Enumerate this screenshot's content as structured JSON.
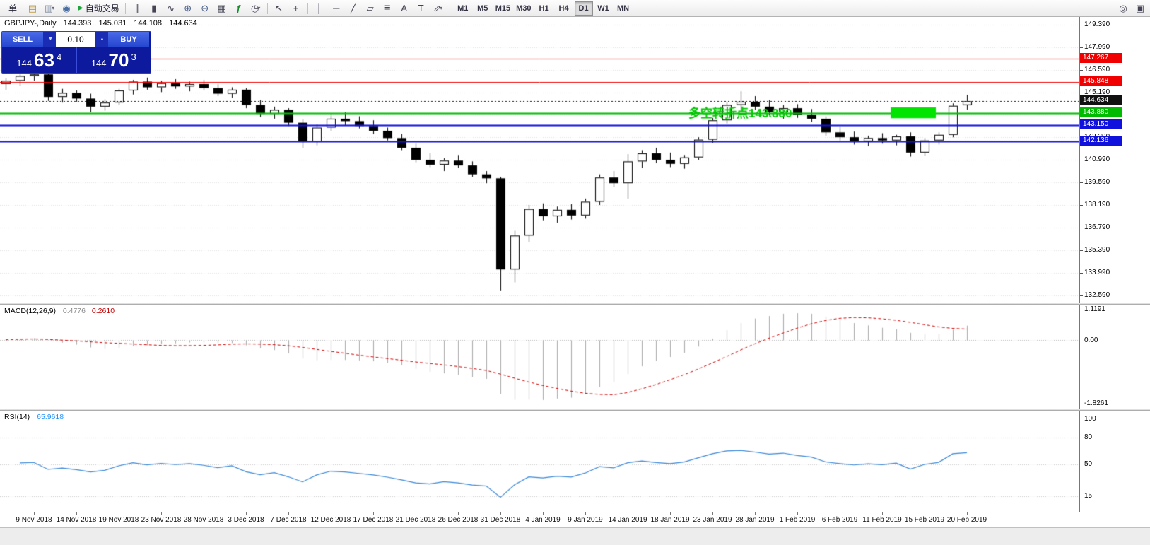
{
  "toolbar": {
    "new_order_label": "单",
    "autotrading_label": "自动交易",
    "autotrading_icon": "▶",
    "caret": "▾",
    "icons": [
      {
        "name": "new-chart",
        "glyph": "▤"
      },
      {
        "name": "profiles",
        "glyph": "▥"
      },
      {
        "name": "market-watch",
        "glyph": "◉"
      },
      {
        "name": "bars-chart",
        "glyph": "∥"
      },
      {
        "name": "candles-chart",
        "glyph": "▮"
      },
      {
        "name": "line-chart",
        "glyph": "∿"
      },
      {
        "name": "zoom-in",
        "glyph": "⊕"
      },
      {
        "name": "zoom-out",
        "glyph": "⊖"
      },
      {
        "name": "tile-windows",
        "glyph": "▦"
      },
      {
        "name": "indicators",
        "glyph": "ƒ"
      },
      {
        "name": "periods",
        "glyph": "◷"
      },
      {
        "name": "cursor",
        "glyph": "↖"
      },
      {
        "name": "crosshair",
        "glyph": "+"
      },
      {
        "name": "vertical-line",
        "glyph": "│"
      },
      {
        "name": "horizontal-line",
        "glyph": "─"
      },
      {
        "name": "trendline",
        "glyph": "╱"
      },
      {
        "name": "channel",
        "glyph": "▱"
      },
      {
        "name": "fibonacci",
        "glyph": "≣"
      },
      {
        "name": "text",
        "glyph": "A"
      },
      {
        "name": "text-label",
        "glyph": "T"
      },
      {
        "name": "arrows",
        "glyph": "⇗"
      },
      {
        "name": "search",
        "glyph": "◎"
      },
      {
        "name": "new-window",
        "glyph": "▣"
      }
    ],
    "timeframes": [
      "M1",
      "M5",
      "M15",
      "M30",
      "H1",
      "H4",
      "D1",
      "W1",
      "MN"
    ],
    "active_timeframe": "D1"
  },
  "chart": {
    "title_symbol": "GBPJPY-,Daily",
    "open": "144.393",
    "high": "145.031",
    "low": "144.108",
    "close": "144.634",
    "one_click": {
      "sell_label": "SELL",
      "buy_label": "BUY",
      "lot": "0.10",
      "spin_down": "▼",
      "spin_up": "▲",
      "sell_price_small": "144",
      "sell_price_big": "63",
      "sell_price_sup": "4",
      "buy_price_small": "144",
      "buy_price_big": "70",
      "buy_price_sup": "3"
    },
    "macd_label": "MACD(12,26,9)",
    "macd_value_main": "0.4776",
    "macd_value_signal": "0.2610",
    "rsi_label": "RSI(14)",
    "rsi_value": "65.9618"
  },
  "chart_data": {
    "type": "candlestick",
    "symbol": "GBPJPY-",
    "timeframe": "Daily",
    "current_bar": {
      "open": 144.393,
      "high": 145.031,
      "low": 144.108,
      "close": 144.634
    },
    "y_axis": {
      "max": 149.86,
      "min": 132.15,
      "tick_labels": [
        "149.390",
        "147.990",
        "146.590",
        "145.190",
        "143.790",
        "142.390",
        "140.990",
        "139.590",
        "138.190",
        "136.790",
        "135.390",
        "133.990",
        "132.590"
      ]
    },
    "x_axis_labels": [
      {
        "text": "9 Nov 2018",
        "bar": 2
      },
      {
        "text": "14 Nov 2018",
        "bar": 5
      },
      {
        "text": "19 Nov 2018",
        "bar": 8
      },
      {
        "text": "23 Nov 2018",
        "bar": 11
      },
      {
        "text": "28 Nov 2018",
        "bar": 14
      },
      {
        "text": "3 Dec 2018",
        "bar": 17
      },
      {
        "text": "7 Dec 2018",
        "bar": 20
      },
      {
        "text": "12 Dec 2018",
        "bar": 23
      },
      {
        "text": "17 Dec 2018",
        "bar": 26
      },
      {
        "text": "21 Dec 2018",
        "bar": 29
      },
      {
        "text": "26 Dec 2018",
        "bar": 32
      },
      {
        "text": "31 Dec 2018",
        "bar": 35
      },
      {
        "text": "4 Jan 2019",
        "bar": 38
      },
      {
        "text": "9 Jan 2019",
        "bar": 41
      },
      {
        "text": "14 Jan 2019",
        "bar": 44
      },
      {
        "text": "18 Jan 2019",
        "bar": 47
      },
      {
        "text": "23 Jan 2019",
        "bar": 50
      },
      {
        "text": "28 Jan 2019",
        "bar": 53
      },
      {
        "text": "1 Feb 2019",
        "bar": 56
      },
      {
        "text": "6 Feb 2019",
        "bar": 59
      },
      {
        "text": "11 Feb 2019",
        "bar": 62
      },
      {
        "text": "15 Feb 2019",
        "bar": 65
      },
      {
        "text": "20 Feb 2019",
        "bar": 68
      }
    ],
    "candles": [
      [
        145.7,
        146.05,
        145.35,
        145.9
      ],
      [
        145.9,
        146.3,
        145.6,
        146.2
      ],
      [
        146.2,
        146.45,
        145.9,
        146.3
      ],
      [
        146.3,
        146.4,
        144.65,
        144.9
      ],
      [
        144.9,
        145.4,
        144.55,
        145.15
      ],
      [
        145.15,
        145.3,
        144.6,
        144.8
      ],
      [
        144.8,
        145.1,
        143.95,
        144.3
      ],
      [
        144.3,
        144.75,
        144.05,
        144.55
      ],
      [
        144.55,
        145.4,
        144.4,
        145.3
      ],
      [
        145.3,
        145.95,
        145.05,
        145.85
      ],
      [
        145.85,
        146.1,
        145.35,
        145.5
      ],
      [
        145.5,
        145.9,
        145.2,
        145.75
      ],
      [
        145.75,
        146.0,
        145.4,
        145.55
      ],
      [
        145.55,
        145.85,
        145.25,
        145.7
      ],
      [
        145.7,
        145.95,
        145.3,
        145.45
      ],
      [
        145.45,
        145.7,
        144.95,
        145.1
      ],
      [
        145.1,
        145.5,
        144.85,
        145.35
      ],
      [
        145.35,
        145.45,
        144.2,
        144.4
      ],
      [
        144.4,
        144.7,
        143.65,
        143.85
      ],
      [
        143.85,
        144.3,
        143.55,
        144.1
      ],
      [
        144.1,
        144.2,
        143.1,
        143.3
      ],
      [
        143.3,
        143.5,
        141.75,
        142.1
      ],
      [
        142.1,
        143.2,
        141.9,
        143.0
      ],
      [
        143.0,
        143.85,
        142.8,
        143.55
      ],
      [
        143.55,
        143.95,
        143.15,
        143.4
      ],
      [
        143.4,
        143.7,
        142.95,
        143.1
      ],
      [
        143.1,
        143.45,
        142.6,
        142.8
      ],
      [
        142.8,
        143.0,
        142.2,
        142.35
      ],
      [
        142.35,
        142.6,
        141.6,
        141.75
      ],
      [
        141.75,
        142.0,
        140.85,
        141.0
      ],
      [
        141.0,
        141.4,
        140.55,
        140.7
      ],
      [
        140.7,
        141.1,
        140.3,
        140.95
      ],
      [
        140.95,
        141.3,
        140.5,
        140.65
      ],
      [
        140.65,
        140.9,
        139.95,
        140.1
      ],
      [
        140.1,
        140.3,
        139.55,
        139.85
      ],
      [
        139.85,
        139.95,
        132.9,
        134.2
      ],
      [
        134.2,
        136.6,
        133.4,
        136.3
      ],
      [
        136.3,
        138.2,
        135.9,
        137.95
      ],
      [
        137.95,
        138.3,
        137.25,
        137.5
      ],
      [
        137.5,
        138.1,
        137.1,
        137.9
      ],
      [
        137.9,
        138.25,
        137.3,
        137.55
      ],
      [
        137.55,
        138.6,
        137.35,
        138.4
      ],
      [
        138.4,
        140.1,
        138.2,
        139.9
      ],
      [
        139.9,
        140.3,
        139.3,
        139.55
      ],
      [
        139.55,
        141.35,
        138.6,
        140.9
      ],
      [
        140.9,
        141.6,
        140.5,
        141.4
      ],
      [
        141.4,
        141.75,
        140.8,
        141.0
      ],
      [
        141.0,
        141.45,
        140.55,
        140.75
      ],
      [
        140.75,
        141.3,
        140.45,
        141.15
      ],
      [
        141.15,
        142.4,
        141.0,
        142.25
      ],
      [
        142.25,
        143.6,
        142.05,
        143.45
      ],
      [
        143.45,
        144.55,
        143.25,
        144.4
      ],
      [
        144.4,
        145.25,
        144.05,
        144.6
      ],
      [
        144.6,
        144.95,
        144.1,
        144.3
      ],
      [
        144.3,
        144.7,
        143.75,
        143.95
      ],
      [
        143.95,
        144.4,
        143.55,
        144.2
      ],
      [
        144.2,
        144.45,
        143.6,
        143.8
      ],
      [
        143.8,
        144.15,
        143.35,
        143.55
      ],
      [
        143.55,
        143.7,
        142.5,
        142.7
      ],
      [
        142.7,
        143.05,
        142.2,
        142.4
      ],
      [
        142.4,
        142.75,
        141.95,
        142.15
      ],
      [
        142.15,
        142.5,
        141.85,
        142.35
      ],
      [
        142.35,
        142.65,
        142.0,
        142.2
      ],
      [
        142.2,
        142.55,
        141.9,
        142.45
      ],
      [
        142.45,
        142.7,
        141.2,
        141.45
      ],
      [
        141.45,
        142.35,
        141.25,
        142.2
      ],
      [
        142.2,
        142.7,
        141.95,
        142.55
      ],
      [
        142.55,
        144.5,
        142.4,
        144.35
      ],
      [
        144.39,
        145.03,
        144.11,
        144.63
      ]
    ],
    "levels": [
      {
        "price": 147.267,
        "label": "147.267",
        "color": "#f00000",
        "width": 1,
        "style": "solid"
      },
      {
        "price": 145.848,
        "label": "145.848",
        "color": "#f00000",
        "width": 1,
        "style": "solid"
      },
      {
        "price": 144.634,
        "label": "144.634",
        "color": "#111111",
        "width": 1,
        "style": "dashed",
        "type": "current-price"
      },
      {
        "price": 143.88,
        "label": "143.880",
        "color": "#00bb00",
        "width": 2,
        "style": "solid"
      },
      {
        "price": 143.15,
        "label": "143.150",
        "color": "#1111dd",
        "width": 2,
        "style": "solid"
      },
      {
        "price": 142.136,
        "label": "142.136",
        "color": "#1111dd",
        "width": 2,
        "style": "solid"
      }
    ],
    "green_rect": {
      "bar_start": 62.6,
      "bar_end": 65.8,
      "price_top": 144.25,
      "price_bottom": 143.58,
      "color": "#00e400"
    },
    "annotation": {
      "text": "多空转折点143.880",
      "bar": 48.3,
      "price": 143.64,
      "color": "#00c800",
      "font_size": 17
    },
    "indicators": {
      "macd": {
        "params": [
          12,
          26,
          9
        ],
        "histogram_color": "#a8a8a8",
        "signal_color": "#d40000",
        "signal_style": "dashed",
        "scale_labels": [
          "1.1191",
          "0.00",
          "-1.8261"
        ],
        "current_main": 0.4776,
        "current_signal": 0.261
      },
      "rsi": {
        "period": 14,
        "line_color": "#3a87d8",
        "levels": [
          80,
          50,
          15
        ],
        "scale_labels": [
          "100",
          "80",
          "50",
          "15"
        ],
        "current": 65.9618
      }
    }
  }
}
